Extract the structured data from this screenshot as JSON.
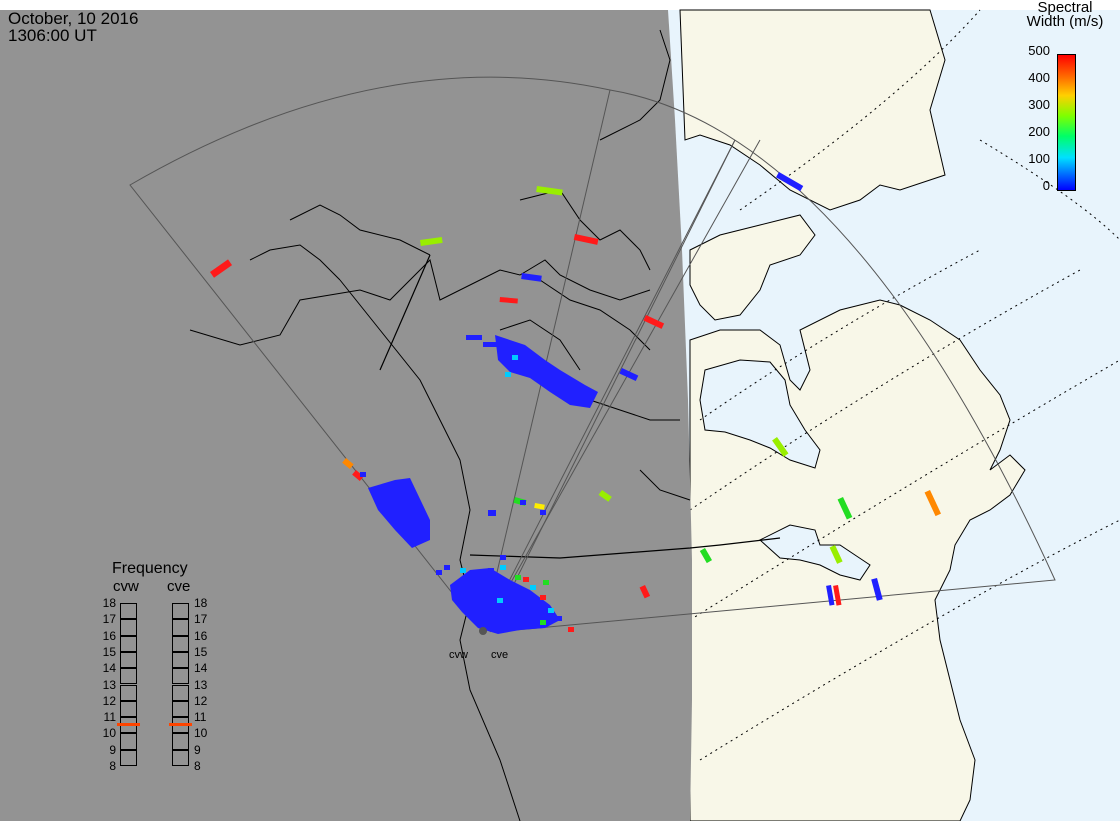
{
  "header": {
    "date": "October, 10 2016",
    "time": "1306:00 UT"
  },
  "colorbar": {
    "title_line1": "Spectral",
    "title_line2": "Width (m/s)",
    "ticks": [
      "500",
      "400",
      "300",
      "200",
      "100",
      "0"
    ],
    "range": [
      0,
      500
    ],
    "colors": [
      "#0000ff",
      "#00e0ff",
      "#00ff00",
      "#ffe000",
      "#ff0000"
    ]
  },
  "frequency_panel": {
    "title": "Frequency",
    "radars": [
      {
        "label": "cvw",
        "value_mhz": 10.6,
        "marker_color": "#ff4500"
      },
      {
        "label": "cve",
        "value_mhz": 10.6,
        "marker_color": "#ff4500"
      }
    ],
    "ticks": [
      "18",
      "17",
      "16",
      "15",
      "14",
      "13",
      "12",
      "11",
      "10",
      "9",
      "8"
    ]
  },
  "radar_labels": [
    "cvw",
    "cve"
  ],
  "map_colors": {
    "night": "#939393",
    "day_land": "#f8f7e8",
    "day_ocean": "#e8f4fc",
    "fov": "#555555"
  },
  "echo_colors": {
    "blue": "#2020ff",
    "cyan": "#00ccff",
    "green": "#22dd22",
    "lime": "#99ee00",
    "yellow": "#ffee00",
    "orange": "#ff8800",
    "red": "#ff1a1a"
  }
}
